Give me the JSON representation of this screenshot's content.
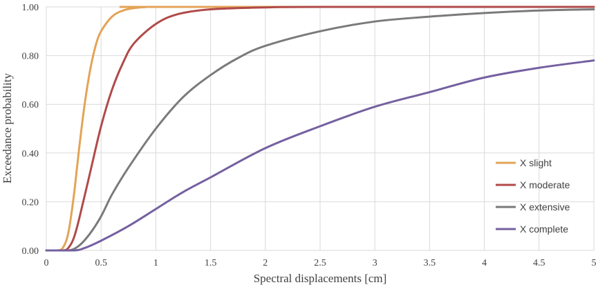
{
  "chart_data": {
    "type": "line",
    "xlabel": "Spectral displacements [cm]",
    "ylabel": "Exceedance probability",
    "xlim": [
      0,
      5
    ],
    "ylim": [
      0,
      1
    ],
    "x_ticks": [
      "0",
      "0.5",
      "1",
      "1.5",
      "2",
      "2.5",
      "3",
      "3.5",
      "4",
      "4.5",
      "5"
    ],
    "y_ticks": [
      "0.00",
      "0.20",
      "0.40",
      "0.60",
      "0.80",
      "1.00"
    ],
    "grid": true,
    "legend_position": "bottom-right",
    "series": [
      {
        "name": "X slight",
        "color": "#e3a357",
        "points": [
          [
            0,
            0
          ],
          [
            0.1,
            0
          ],
          [
            0.15,
            0.01
          ],
          [
            0.2,
            0.07
          ],
          [
            0.25,
            0.22
          ],
          [
            0.3,
            0.42
          ],
          [
            0.35,
            0.6
          ],
          [
            0.4,
            0.74
          ],
          [
            0.45,
            0.84
          ],
          [
            0.5,
            0.9
          ],
          [
            0.6,
            0.96
          ],
          [
            0.7,
            0.985
          ],
          [
            0.8,
            0.995
          ],
          [
            0.9,
            0.999
          ],
          [
            1,
            1
          ],
          [
            5,
            1
          ]
        ]
      },
      {
        "name": "X moderate",
        "color": "#b04a48",
        "points": [
          [
            0,
            0
          ],
          [
            0.15,
            0
          ],
          [
            0.2,
            0.01
          ],
          [
            0.25,
            0.05
          ],
          [
            0.3,
            0.13
          ],
          [
            0.4,
            0.32
          ],
          [
            0.5,
            0.51
          ],
          [
            0.6,
            0.66
          ],
          [
            0.7,
            0.77
          ],
          [
            0.8,
            0.85
          ],
          [
            1,
            0.93
          ],
          [
            1.2,
            0.97
          ],
          [
            1.5,
            0.99
          ],
          [
            2,
            0.998
          ],
          [
            2.5,
            1
          ],
          [
            5,
            1
          ]
        ]
      },
      {
        "name": "X extensive",
        "color": "#7a7a7a",
        "points": [
          [
            0,
            0
          ],
          [
            0.2,
            0
          ],
          [
            0.3,
            0.02
          ],
          [
            0.4,
            0.07
          ],
          [
            0.5,
            0.14
          ],
          [
            0.6,
            0.23
          ],
          [
            0.75,
            0.34
          ],
          [
            1,
            0.5
          ],
          [
            1.25,
            0.63
          ],
          [
            1.5,
            0.72
          ],
          [
            1.75,
            0.79
          ],
          [
            2,
            0.84
          ],
          [
            2.5,
            0.9
          ],
          [
            3,
            0.94
          ],
          [
            3.5,
            0.96
          ],
          [
            4,
            0.975
          ],
          [
            4.5,
            0.985
          ],
          [
            5,
            0.99
          ]
        ]
      },
      {
        "name": "X complete",
        "color": "#7460a0",
        "points": [
          [
            0,
            0
          ],
          [
            0.25,
            0
          ],
          [
            0.35,
            0.01
          ],
          [
            0.5,
            0.04
          ],
          [
            0.75,
            0.1
          ],
          [
            1,
            0.17
          ],
          [
            1.25,
            0.24
          ],
          [
            1.5,
            0.3
          ],
          [
            2,
            0.42
          ],
          [
            2.5,
            0.51
          ],
          [
            3,
            0.59
          ],
          [
            3.5,
            0.65
          ],
          [
            4,
            0.71
          ],
          [
            4.5,
            0.75
          ],
          [
            5,
            0.78
          ]
        ]
      }
    ]
  }
}
